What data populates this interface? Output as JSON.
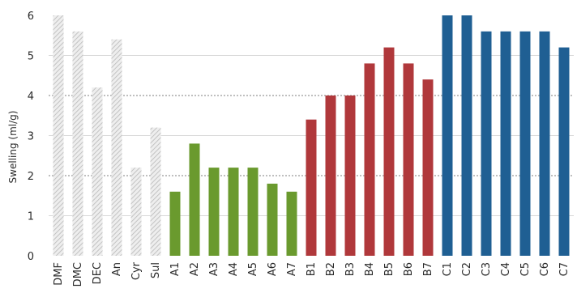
{
  "chart_data": {
    "type": "bar",
    "categories": [
      "DMF",
      "DMC",
      "DEC",
      "An",
      "Cyr",
      "Sul",
      "A1",
      "A2",
      "A3",
      "A4",
      "A5",
      "A6",
      "A7",
      "B1",
      "B2",
      "B3",
      "B4",
      "B5",
      "B6",
      "B7",
      "C1",
      "C2",
      "C3",
      "C4",
      "C5",
      "C6",
      "C7"
    ],
    "values": [
      6.0,
      5.6,
      4.2,
      5.4,
      2.2,
      3.2,
      1.6,
      2.8,
      2.2,
      2.2,
      2.2,
      1.8,
      1.6,
      3.4,
      4.0,
      4.0,
      4.8,
      5.2,
      4.8,
      4.4,
      6.0,
      6.0,
      5.6,
      5.6,
      5.6,
      5.6,
      5.2
    ],
    "groups": [
      {
        "categories": [
          "DMF",
          "DMC",
          "DEC",
          "An",
          "Cyr",
          "Sul"
        ],
        "color": "#d9d9d9",
        "pattern": "hatched"
      },
      {
        "categories": [
          "A1",
          "A2",
          "A3",
          "A4",
          "A5",
          "A6",
          "A7"
        ],
        "color": "#6a9a2e",
        "pattern": "solid"
      },
      {
        "categories": [
          "B1",
          "B2",
          "B3",
          "B4",
          "B5",
          "B6",
          "B7"
        ],
        "color": "#b0383b",
        "pattern": "solid"
      },
      {
        "categories": [
          "C1",
          "C2",
          "C3",
          "C4",
          "C5",
          "C6",
          "C7"
        ],
        "color": "#1f5f93",
        "pattern": "solid"
      }
    ],
    "title": "",
    "xlabel": "",
    "ylabel": "Swelling (ml/g)",
    "ylim": [
      0,
      6
    ],
    "yticks": [
      0,
      1,
      2,
      3,
      4,
      5,
      6
    ],
    "grid": {
      "major_dotted": [
        2,
        4
      ],
      "minor_light": [
        1,
        3,
        5
      ]
    },
    "legend": "none"
  }
}
